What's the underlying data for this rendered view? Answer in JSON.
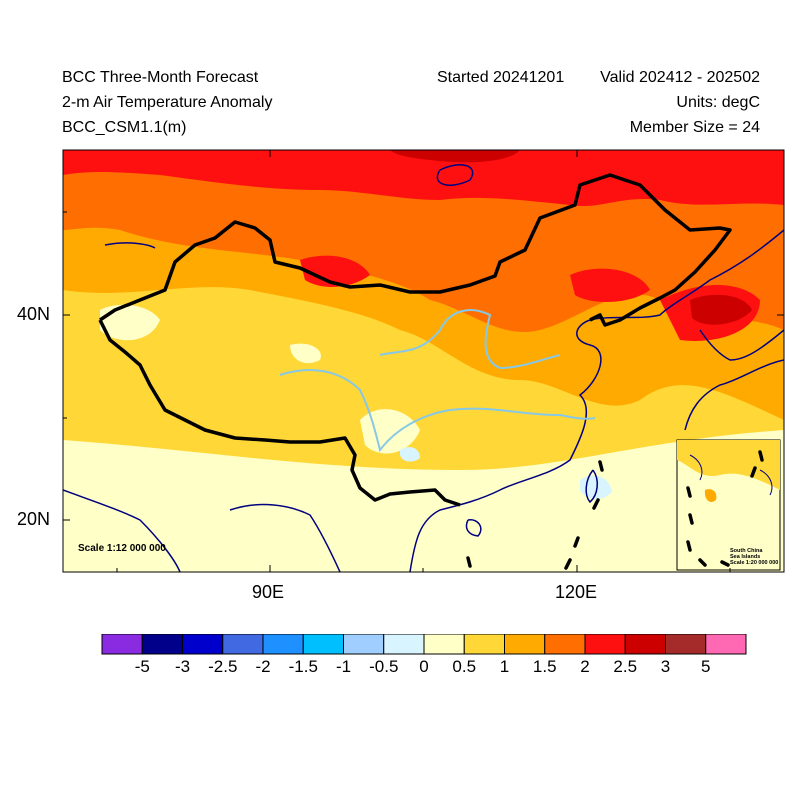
{
  "header": {
    "title": "BCC Three-Month Forecast",
    "variable": "2-m Air Temperature Anomaly",
    "model": "BCC_CSM1.1(m)",
    "started": "Started 20241201",
    "valid": "Valid 202412 - 202502",
    "units": "Units: degC",
    "member_size": "Member Size = 24"
  },
  "map": {
    "lat_labels": [
      "40N",
      "20N"
    ],
    "lon_labels": [
      "90E",
      "120E"
    ],
    "scale_main": "Scale 1:12 000 000",
    "inset_title_1": "South China",
    "inset_title_2": "Sea Islands",
    "inset_scale": "Scale 1:20 000 000",
    "colors": {
      "land_border": "#000000",
      "coastline": "#000080",
      "river": "#87c8e6"
    }
  },
  "colorbar": {
    "colors": [
      "#8a2be2",
      "#00008b",
      "#0000cd",
      "#4169e1",
      "#1e90ff",
      "#00bfff",
      "#a0cfff",
      "#d8f4ff",
      "#ffffc8",
      "#ffd737",
      "#ffaa00",
      "#ff6e00",
      "#ff1010",
      "#cd0000",
      "#a52a2a",
      "#ff69b4"
    ],
    "labels": [
      "-5",
      "-3",
      "-2.5",
      "-2",
      "-1.5",
      "-1",
      "-0.5",
      "0",
      "0.5",
      "1",
      "1.5",
      "2",
      "2.5",
      "3",
      "5"
    ]
  }
}
